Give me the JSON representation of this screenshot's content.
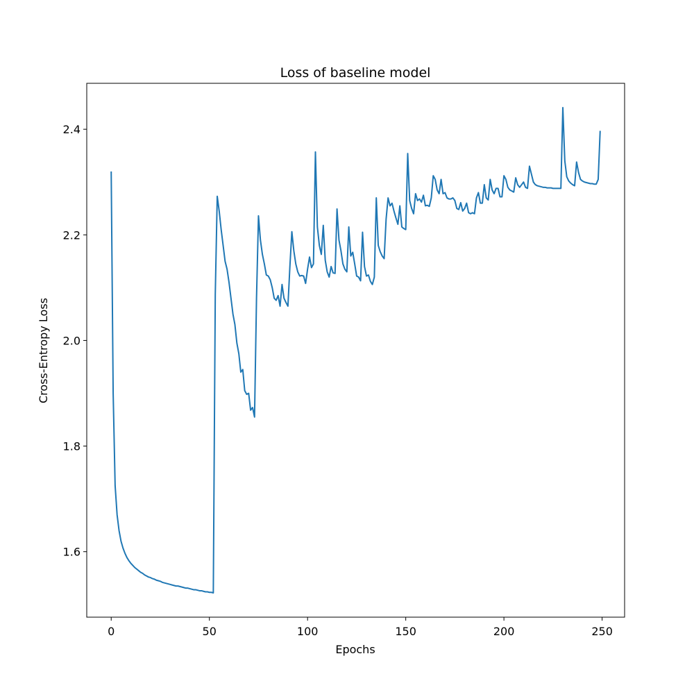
{
  "chart_data": {
    "type": "line",
    "title": "Loss of baseline model",
    "x_label": "Epochs",
    "y_label": "Cross-Entropy Loss",
    "color": "#1f77b4",
    "x": [
      0,
      1,
      2,
      3,
      4,
      5,
      6,
      7,
      8,
      9,
      10,
      11,
      12,
      13,
      14,
      15,
      16,
      17,
      18,
      19,
      20,
      21,
      22,
      23,
      24,
      25,
      26,
      27,
      28,
      29,
      30,
      31,
      32,
      33,
      34,
      35,
      36,
      37,
      38,
      39,
      40,
      41,
      42,
      43,
      44,
      45,
      46,
      47,
      48,
      49,
      50,
      51,
      52,
      53,
      54,
      55,
      56,
      57,
      58,
      59,
      60,
      61,
      62,
      63,
      64,
      65,
      66,
      67,
      68,
      69,
      70,
      71,
      72,
      73,
      74,
      75,
      76,
      77,
      78,
      79,
      80,
      81,
      82,
      83,
      84,
      85,
      86,
      87,
      88,
      89,
      90,
      91,
      92,
      93,
      94,
      95,
      96,
      97,
      98,
      99,
      100,
      101,
      102,
      103,
      104,
      105,
      106,
      107,
      108,
      109,
      110,
      111,
      112,
      113,
      114,
      115,
      116,
      117,
      118,
      119,
      120,
      121,
      122,
      123,
      124,
      125,
      126,
      127,
      128,
      129,
      130,
      131,
      132,
      133,
      134,
      135,
      136,
      137,
      138,
      139,
      140,
      141,
      142,
      143,
      144,
      145,
      146,
      147,
      148,
      149,
      150,
      151,
      152,
      153,
      154,
      155,
      156,
      157,
      158,
      159,
      160,
      161,
      162,
      163,
      164,
      165,
      166,
      167,
      168,
      169,
      170,
      171,
      172,
      173,
      174,
      175,
      176,
      177,
      178,
      179,
      180,
      181,
      182,
      183,
      184,
      185,
      186,
      187,
      188,
      189,
      190,
      191,
      192,
      193,
      194,
      195,
      196,
      197,
      198,
      199,
      200,
      201,
      202,
      203,
      204,
      205,
      206,
      207,
      208,
      209,
      210,
      211,
      212,
      213,
      214,
      215,
      216,
      217,
      218,
      219,
      220,
      221,
      222,
      223,
      224,
      225,
      226,
      227,
      228,
      229,
      230,
      231,
      232,
      233,
      234,
      235,
      236,
      237,
      238,
      239,
      240,
      241,
      242,
      243,
      244,
      245,
      246,
      247,
      248,
      249
    ],
    "values": [
      2.32,
      1.9,
      1.725,
      1.67,
      1.64,
      1.62,
      1.607,
      1.597,
      1.589,
      1.583,
      1.578,
      1.574,
      1.57,
      1.567,
      1.564,
      1.561,
      1.559,
      1.556,
      1.554,
      1.552,
      1.551,
      1.549,
      1.548,
      1.546,
      1.545,
      1.544,
      1.542,
      1.541,
      1.54,
      1.539,
      1.538,
      1.537,
      1.536,
      1.535,
      1.535,
      1.534,
      1.533,
      1.532,
      1.531,
      1.531,
      1.53,
      1.529,
      1.528,
      1.528,
      1.527,
      1.526,
      1.526,
      1.525,
      1.524,
      1.524,
      1.523,
      1.523,
      1.522,
      2.087,
      2.273,
      2.245,
      2.21,
      2.18,
      2.15,
      2.135,
      2.11,
      2.08,
      2.05,
      2.03,
      1.995,
      1.975,
      1.94,
      1.945,
      1.905,
      1.898,
      1.9,
      1.868,
      1.873,
      1.855,
      2.08,
      2.236,
      2.19,
      2.163,
      2.145,
      2.124,
      2.122,
      2.115,
      2.1,
      2.08,
      2.076,
      2.085,
      2.065,
      2.106,
      2.08,
      2.072,
      2.065,
      2.14,
      2.206,
      2.17,
      2.145,
      2.13,
      2.122,
      2.123,
      2.122,
      2.108,
      2.135,
      2.158,
      2.138,
      2.145,
      2.357,
      2.215,
      2.18,
      2.163,
      2.218,
      2.152,
      2.13,
      2.12,
      2.14,
      2.128,
      2.127,
      2.249,
      2.19,
      2.17,
      2.145,
      2.135,
      2.13,
      2.215,
      2.16,
      2.167,
      2.145,
      2.122,
      2.12,
      2.113,
      2.205,
      2.14,
      2.122,
      2.124,
      2.112,
      2.106,
      2.12,
      2.27,
      2.18,
      2.168,
      2.16,
      2.155,
      2.23,
      2.27,
      2.255,
      2.26,
      2.245,
      2.232,
      2.22,
      2.255,
      2.215,
      2.212,
      2.21,
      2.354,
      2.265,
      2.25,
      2.24,
      2.278,
      2.265,
      2.268,
      2.262,
      2.275,
      2.255,
      2.256,
      2.254,
      2.27,
      2.312,
      2.305,
      2.285,
      2.278,
      2.305,
      2.278,
      2.28,
      2.27,
      2.268,
      2.268,
      2.27,
      2.265,
      2.25,
      2.248,
      2.261,
      2.245,
      2.25,
      2.26,
      2.242,
      2.24,
      2.242,
      2.24,
      2.27,
      2.28,
      2.26,
      2.26,
      2.295,
      2.27,
      2.266,
      2.305,
      2.285,
      2.278,
      2.288,
      2.288,
      2.272,
      2.272,
      2.312,
      2.305,
      2.29,
      2.285,
      2.283,
      2.281,
      2.308,
      2.295,
      2.29,
      2.295,
      2.3,
      2.29,
      2.288,
      2.33,
      2.315,
      2.3,
      2.295,
      2.293,
      2.292,
      2.291,
      2.29,
      2.29,
      2.289,
      2.289,
      2.289,
      2.288,
      2.288,
      2.288,
      2.288,
      2.288,
      2.441,
      2.34,
      2.31,
      2.302,
      2.298,
      2.295,
      2.293,
      2.338,
      2.318,
      2.305,
      2.302,
      2.3,
      2.299,
      2.298,
      2.297,
      2.297,
      2.296,
      2.296,
      2.305,
      2.397
    ],
    "xlim": [
      -12.45,
      261.45
    ],
    "xticks": [
      0,
      50,
      100,
      150,
      200,
      250
    ],
    "ylim": [
      1.476,
      2.487
    ],
    "yticks": [
      {
        "value": 1.6,
        "label": "1.6"
      },
      {
        "value": 1.8,
        "label": "1.8"
      },
      {
        "value": 2.0,
        "label": "2.0"
      },
      {
        "value": 2.2,
        "label": "2.2"
      },
      {
        "value": 2.4,
        "label": "2.4"
      }
    ],
    "grid": false
  }
}
